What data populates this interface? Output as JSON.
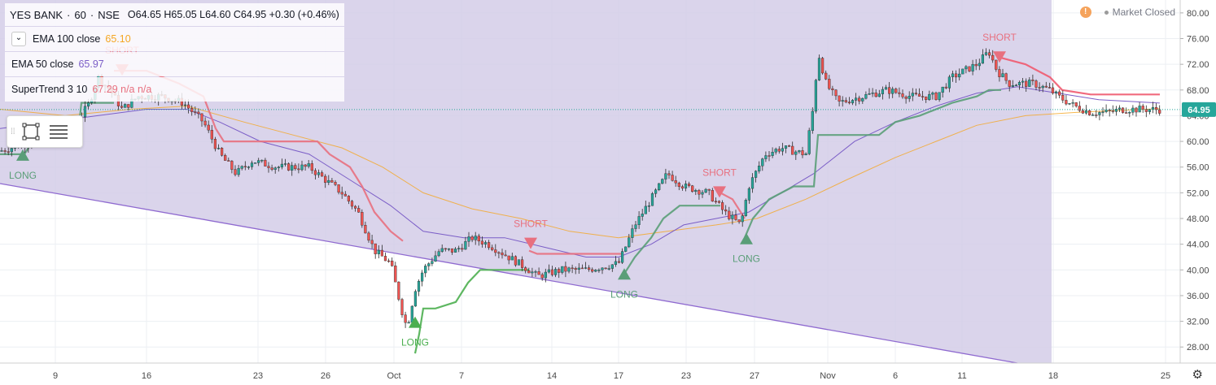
{
  "header": {
    "symbol": "YES BANK",
    "interval": "60",
    "exchange": "NSE",
    "ohlc": "O64.65  H65.05  L64.60  C64.95  +0.30 (+0.46%)"
  },
  "indicators": [
    {
      "label": "EMA 100 close",
      "value": "65.10",
      "color": "#f5a623"
    },
    {
      "label": "EMA 50 close",
      "value": "65.97",
      "color": "#7b5ec7"
    },
    {
      "label": "SuperTrend 3 10",
      "value": "67.29  n/a  n/a",
      "color": "#e8707f"
    }
  ],
  "market_status": "Market Closed",
  "price_tag": "64.95",
  "colors": {
    "shaded": "#d4cce8",
    "supertrend_up": "#4caf50",
    "supertrend_down": "#ef5a6f",
    "ema50": "#7b5ec7",
    "ema100": "#f5a623",
    "bull": "#26a69a",
    "bear": "#ef5350"
  },
  "chart_data": {
    "type": "candlestick",
    "yaxis": {
      "labels": [
        "80.00",
        "76.00",
        "72.00",
        "68.00",
        "64.00",
        "60.00",
        "56.00",
        "52.00",
        "48.00",
        "44.00",
        "40.00",
        "36.00",
        "32.00",
        "28.00"
      ],
      "ylim": [
        25.5,
        81.5
      ]
    },
    "xaxis": {
      "labels": [
        "9",
        "16",
        "23",
        "26",
        "Oct",
        "7",
        "14",
        "17",
        "23",
        "27",
        "Nov",
        "6",
        "11",
        "18",
        "25"
      ]
    },
    "signals": [
      {
        "label": "LONG",
        "price": 58,
        "dir": "up",
        "color": "#5a9e78"
      },
      {
        "label": "SHORT",
        "price": 71,
        "dir": "down",
        "color": "#e8707f"
      },
      {
        "label": "LONG",
        "price": 32,
        "dir": "up",
        "color": "#4caf50"
      },
      {
        "label": "SHORT",
        "price": 44,
        "dir": "down",
        "color": "#e8707f"
      },
      {
        "label": "LONG",
        "price": 39.5,
        "dir": "up",
        "color": "#5a9e78"
      },
      {
        "label": "SHORT",
        "price": 52,
        "dir": "down",
        "color": "#e8707f"
      },
      {
        "label": "LONG",
        "price": 45,
        "dir": "up",
        "color": "#5a9e78"
      },
      {
        "label": "SHORT",
        "price": 73,
        "dir": "down",
        "color": "#e8707f"
      }
    ],
    "close_path": [
      [
        0,
        58.5
      ],
      [
        40,
        60
      ],
      [
        90,
        62
      ],
      [
        110,
        66
      ],
      [
        120,
        70
      ],
      [
        135,
        68
      ],
      [
        150,
        65
      ],
      [
        170,
        67
      ],
      [
        200,
        67
      ],
      [
        225,
        66
      ],
      [
        250,
        63
      ],
      [
        270,
        58
      ],
      [
        290,
        55
      ],
      [
        310,
        57
      ],
      [
        340,
        56
      ],
      [
        380,
        56
      ],
      [
        400,
        54
      ],
      [
        420,
        52
      ],
      [
        440,
        49
      ],
      [
        460,
        43
      ],
      [
        480,
        41
      ],
      [
        495,
        33
      ],
      [
        500,
        31
      ],
      [
        510,
        37
      ],
      [
        520,
        40
      ],
      [
        540,
        43
      ],
      [
        560,
        43
      ],
      [
        580,
        45
      ],
      [
        600,
        44
      ],
      [
        625,
        42
      ],
      [
        650,
        40
      ],
      [
        660,
        39
      ],
      [
        690,
        40
      ],
      [
        720,
        40
      ],
      [
        760,
        41
      ],
      [
        780,
        47
      ],
      [
        800,
        51
      ],
      [
        820,
        55
      ],
      [
        840,
        53
      ],
      [
        870,
        52
      ],
      [
        890,
        49
      ],
      [
        910,
        47
      ],
      [
        920,
        53
      ],
      [
        940,
        58
      ],
      [
        960,
        59
      ],
      [
        990,
        58
      ],
      [
        1000,
        66
      ],
      [
        1005,
        74
      ],
      [
        1015,
        69
      ],
      [
        1030,
        66
      ],
      [
        1060,
        67
      ],
      [
        1090,
        68
      ],
      [
        1120,
        67
      ],
      [
        1150,
        67
      ],
      [
        1170,
        70
      ],
      [
        1200,
        72
      ],
      [
        1215,
        74
      ],
      [
        1225,
        71
      ],
      [
        1240,
        69
      ],
      [
        1270,
        69
      ],
      [
        1290,
        68
      ],
      [
        1300,
        67
      ],
      [
        1320,
        65.5
      ],
      [
        1340,
        64.5
      ],
      [
        1360,
        64.5
      ],
      [
        1380,
        65
      ],
      [
        1400,
        65
      ],
      [
        1425,
        64.95
      ]
    ],
    "supertrend": [
      {
        "color": "#5a9e78",
        "points": [
          [
            0,
            58
          ],
          [
            30,
            58
          ],
          [
            40,
            60
          ],
          [
            95,
            60
          ],
          [
            100,
            66
          ],
          [
            140,
            66
          ]
        ]
      },
      {
        "color": "#e8707f",
        "points": [
          [
            140,
            71
          ],
          [
            180,
            71
          ],
          [
            220,
            69
          ],
          [
            250,
            67
          ],
          [
            265,
            62
          ],
          [
            275,
            60
          ],
          [
            390,
            60
          ],
          [
            405,
            58
          ],
          [
            430,
            56
          ],
          [
            445,
            53
          ],
          [
            460,
            49
          ],
          [
            480,
            46
          ],
          [
            495,
            44.5
          ]
        ]
      },
      {
        "color": "#4caf50",
        "points": [
          [
            510,
            27
          ],
          [
            515,
            30
          ],
          [
            520,
            34
          ],
          [
            535,
            34
          ],
          [
            560,
            35
          ],
          [
            575,
            38
          ],
          [
            590,
            40
          ],
          [
            650,
            40
          ]
        ]
      },
      {
        "color": "#e8707f",
        "points": [
          [
            650,
            43
          ],
          [
            660,
            42.5
          ],
          [
            700,
            42.5
          ],
          [
            765,
            42.5
          ]
        ]
      },
      {
        "color": "#5a9e78",
        "points": [
          [
            765,
            39
          ],
          [
            780,
            42
          ],
          [
            800,
            45
          ],
          [
            815,
            48
          ],
          [
            835,
            50
          ],
          [
            855,
            50
          ],
          [
            885,
            50
          ]
        ]
      },
      {
        "color": "#e8707f",
        "points": [
          [
            885,
            52
          ],
          [
            900,
            51
          ],
          [
            915,
            48
          ]
        ]
      },
      {
        "color": "#5a9e78",
        "points": [
          [
            915,
            45
          ],
          [
            925,
            48
          ],
          [
            945,
            51
          ],
          [
            975,
            53
          ],
          [
            1000,
            53
          ],
          [
            1005,
            61
          ],
          [
            1040,
            61
          ],
          [
            1080,
            61
          ],
          [
            1100,
            63
          ],
          [
            1130,
            64
          ],
          [
            1170,
            66
          ],
          [
            1200,
            67
          ],
          [
            1215,
            68
          ],
          [
            1230,
            68
          ]
        ]
      },
      {
        "color": "#ef5a6f",
        "points": [
          [
            1230,
            73
          ],
          [
            1260,
            72
          ],
          [
            1290,
            70
          ],
          [
            1305,
            68
          ],
          [
            1340,
            67.3
          ],
          [
            1425,
            67.3
          ]
        ]
      }
    ],
    "ema50": [
      [
        0,
        62
      ],
      [
        60,
        63
      ],
      [
        120,
        64
      ],
      [
        180,
        65
      ],
      [
        230,
        65
      ],
      [
        270,
        63
      ],
      [
        320,
        60
      ],
      [
        380,
        58
      ],
      [
        430,
        54
      ],
      [
        480,
        50
      ],
      [
        520,
        46
      ],
      [
        570,
        45
      ],
      [
        620,
        45
      ],
      [
        670,
        43.5
      ],
      [
        720,
        42
      ],
      [
        760,
        42
      ],
      [
        800,
        44
      ],
      [
        840,
        47
      ],
      [
        880,
        48
      ],
      [
        920,
        49
      ],
      [
        960,
        52
      ],
      [
        1000,
        55
      ],
      [
        1050,
        60
      ],
      [
        1100,
        63
      ],
      [
        1150,
        65.5
      ],
      [
        1200,
        67.5
      ],
      [
        1250,
        68.5
      ],
      [
        1300,
        67.5
      ],
      [
        1350,
        66.5
      ],
      [
        1425,
        65.97
      ]
    ],
    "ema100": [
      [
        0,
        65
      ],
      [
        80,
        64
      ],
      [
        160,
        65
      ],
      [
        230,
        65.5
      ],
      [
        300,
        63
      ],
      [
        360,
        61
      ],
      [
        420,
        59
      ],
      [
        470,
        56
      ],
      [
        520,
        52
      ],
      [
        580,
        49.5
      ],
      [
        640,
        48
      ],
      [
        700,
        46
      ],
      [
        760,
        45
      ],
      [
        820,
        46
      ],
      [
        880,
        47
      ],
      [
        930,
        48
      ],
      [
        990,
        51
      ],
      [
        1040,
        54
      ],
      [
        1100,
        57.5
      ],
      [
        1150,
        60
      ],
      [
        1200,
        62.5
      ],
      [
        1260,
        64
      ],
      [
        1320,
        64.5
      ],
      [
        1425,
        65.1
      ]
    ]
  }
}
